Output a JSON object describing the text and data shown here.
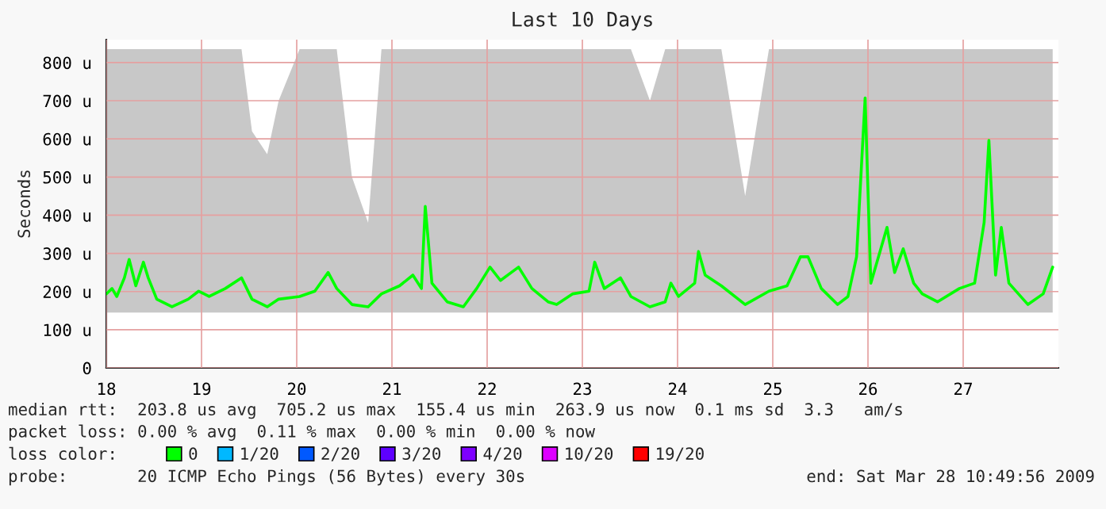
{
  "chart_data": {
    "type": "line",
    "title": "Last 10 Days",
    "ylabel": "Seconds",
    "xlim": [
      18,
      28
    ],
    "xticks": [
      18,
      19,
      20,
      21,
      22,
      23,
      24,
      25,
      26,
      27
    ],
    "ylim": [
      0,
      860
    ],
    "yticks": [
      0,
      {
        "value": 100,
        "label": "100 u"
      },
      {
        "value": 200,
        "label": "200 u"
      },
      {
        "value": 300,
        "label": "300 u"
      },
      {
        "value": 400,
        "label": "400 u"
      },
      {
        "value": 500,
        "label": "500 u"
      },
      {
        "value": 600,
        "label": "600 u"
      },
      {
        "value": 700,
        "label": "700 u"
      },
      {
        "value": 800,
        "label": "800 u"
      }
    ],
    "grid": true,
    "legend": "bottom",
    "legend_title": "loss color:",
    "marker": "none",
    "line_style": "solid",
    "series": [
      {
        "name": "0",
        "color": "#00ff00",
        "x": [
          18.0,
          18.06,
          18.11,
          18.19,
          18.24,
          18.31,
          18.39,
          18.44,
          18.53,
          18.69,
          18.86,
          18.97,
          19.08,
          19.25,
          19.42,
          19.53,
          19.69,
          19.81,
          20.03,
          20.19,
          20.33,
          20.42,
          20.58,
          20.75,
          20.89,
          21.08,
          21.22,
          21.31,
          21.35,
          21.42,
          21.58,
          21.75,
          21.89,
          22.03,
          22.14,
          22.33,
          22.47,
          22.64,
          22.73,
          22.9,
          23.07,
          23.13,
          23.23,
          23.4,
          23.51,
          23.71,
          23.87,
          23.93,
          24.01,
          24.18,
          24.22,
          24.29,
          24.46,
          24.71,
          24.96,
          25.15,
          25.29,
          25.37,
          25.51,
          25.68,
          25.79,
          25.88,
          25.97,
          26.03,
          26.2,
          26.28,
          26.37,
          26.48,
          26.57,
          26.73,
          26.96,
          27.12,
          27.22,
          27.27,
          27.34,
          27.4,
          27.48,
          27.68,
          27.84,
          27.94
        ],
        "values": [
          194,
          208,
          187,
          236,
          284,
          215,
          277,
          236,
          180,
          160,
          180,
          201,
          187,
          208,
          236,
          180,
          160,
          180,
          187,
          201,
          250,
          208,
          166,
          160,
          194,
          215,
          243,
          208,
          423,
          222,
          173,
          160,
          208,
          264,
          229,
          264,
          208,
          173,
          166,
          194,
          201,
          277,
          208,
          236,
          187,
          160,
          173,
          222,
          187,
          222,
          305,
          243,
          215,
          166,
          201,
          215,
          291,
          291,
          208,
          166,
          187,
          291,
          707,
          222,
          368,
          250,
          312,
          222,
          194,
          173,
          208,
          222,
          381,
          596,
          243,
          368,
          222,
          166,
          194,
          264
        ],
        "lower": [
          145,
          145,
          145,
          145,
          145,
          145,
          145,
          145,
          145,
          145,
          145,
          145,
          145,
          145,
          145,
          145,
          145,
          145,
          145,
          145,
          145,
          145,
          145,
          145,
          145,
          145,
          145,
          145,
          145,
          145,
          145,
          145,
          145,
          145,
          145,
          145,
          145,
          145,
          145,
          145,
          145,
          145,
          145,
          145,
          145,
          145,
          145,
          145,
          145,
          145,
          145,
          145,
          145,
          145,
          145,
          145,
          145,
          145,
          145,
          145,
          145,
          145,
          145,
          145,
          145,
          145,
          145,
          145,
          145,
          145,
          145,
          145,
          145,
          145,
          145,
          145,
          145,
          145,
          145,
          145
        ],
        "upper": [
          835,
          835,
          835,
          835,
          835,
          835,
          835,
          835,
          835,
          835,
          835,
          835,
          835,
          835,
          835,
          620,
          560,
          700,
          835,
          835,
          835,
          835,
          500,
          380,
          835,
          835,
          835,
          835,
          835,
          835,
          835,
          835,
          835,
          835,
          835,
          835,
          835,
          835,
          835,
          835,
          835,
          835,
          835,
          835,
          835,
          700,
          835,
          835,
          835,
          835,
          835,
          835,
          835,
          450,
          835,
          835,
          835,
          835,
          835,
          835,
          835,
          835,
          835,
          835,
          835,
          835,
          835,
          835,
          835,
          835,
          835,
          835,
          835,
          835,
          835,
          835,
          835,
          835,
          835,
          835
        ]
      },
      {
        "name": "1/20",
        "color": "#00b8ff"
      },
      {
        "name": "2/20",
        "color": "#0059ff"
      },
      {
        "name": "3/20",
        "color": "#5e00ff"
      },
      {
        "name": "4/20",
        "color": "#7e00ff"
      },
      {
        "name": "10/20",
        "color": "#dd00ff"
      },
      {
        "name": "19/20",
        "color": "#ff0000"
      }
    ],
    "annotations": [
      "median rtt:  203.8 us avg  705.2 us max  155.4 us min  263.9 us now  0.1 ms sd  3.3   am/s",
      "packet loss: 0.00 % avg  0.11 % max  0.00 % min  0.00 % now",
      "probe:       20 ICMP Echo Pings (56 Bytes) every 30s",
      "end: Sat Mar 28 10:49:56 2009"
    ]
  }
}
